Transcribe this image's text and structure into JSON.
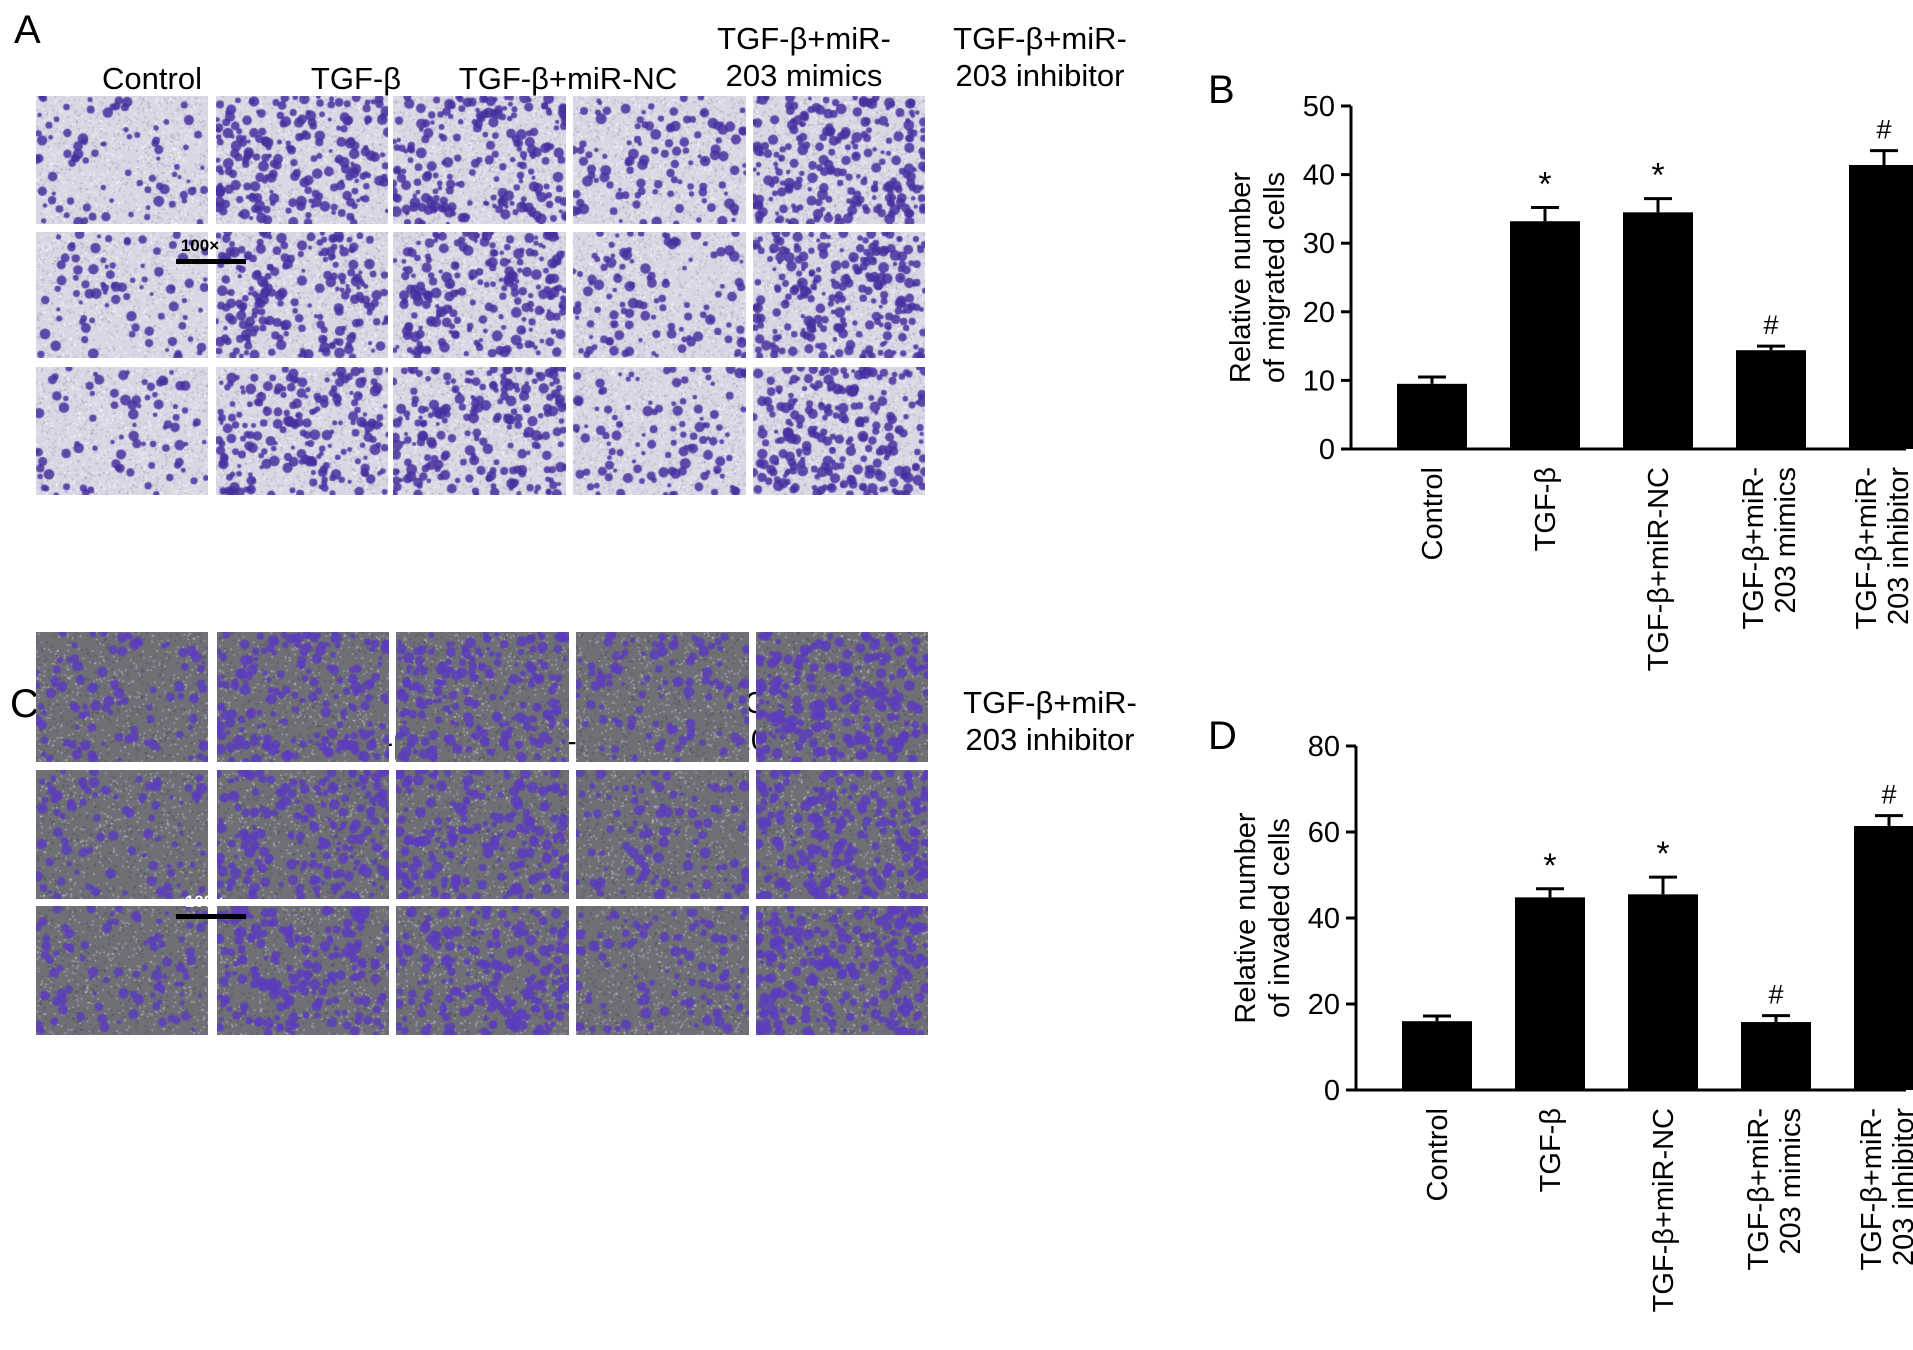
{
  "figure": {
    "panel_labels": {
      "a": "A",
      "b": "B",
      "c": "C",
      "d": "D"
    },
    "micrograph_columns": [
      "Control",
      "TGF-β",
      "TGF-β+miR-NC",
      "TGF-β+miR-\n203 mimics",
      "TGF-β+miR-\n203 inhibitor"
    ],
    "scale_label": "100×",
    "colors": {
      "stain": "#5a3fb0",
      "bar": "#000000"
    }
  },
  "chart_data": [
    {
      "type": "bar",
      "panel": "B",
      "categories": [
        "Control",
        "TGF-β",
        "TGF-β+miR-NC",
        "TGF-β+miR-\n203 mimics",
        "TGF-β+miR-\n203 inhibitor"
      ],
      "values": [
        9.5,
        33.2,
        34.5,
        14.4,
        41.4
      ],
      "errors": [
        1.0,
        2.0,
        2.0,
        0.6,
        2.1
      ],
      "annotations": [
        "",
        "*",
        "*",
        "#",
        "#"
      ],
      "ylabel": "Relative number\nof migrated cells",
      "ylim": [
        0,
        50
      ],
      "yticks": [
        0,
        10,
        20,
        30,
        40,
        50
      ]
    },
    {
      "type": "bar",
      "panel": "D",
      "categories": [
        "Control",
        "TGF-β",
        "TGF-β+miR-NC",
        "TGF-β+miR-\n203 mimics",
        "TGF-β+miR-\n203 inhibitor"
      ],
      "values": [
        16.0,
        44.8,
        45.5,
        15.8,
        61.4
      ],
      "errors": [
        1.2,
        2.0,
        4.0,
        1.5,
        2.4
      ],
      "annotations": [
        "",
        "*",
        "*",
        "#",
        "#"
      ],
      "ylabel": "Relative number\nof invaded cells",
      "ylim": [
        0,
        80
      ],
      "yticks": [
        0,
        20,
        40,
        60,
        80
      ]
    }
  ]
}
